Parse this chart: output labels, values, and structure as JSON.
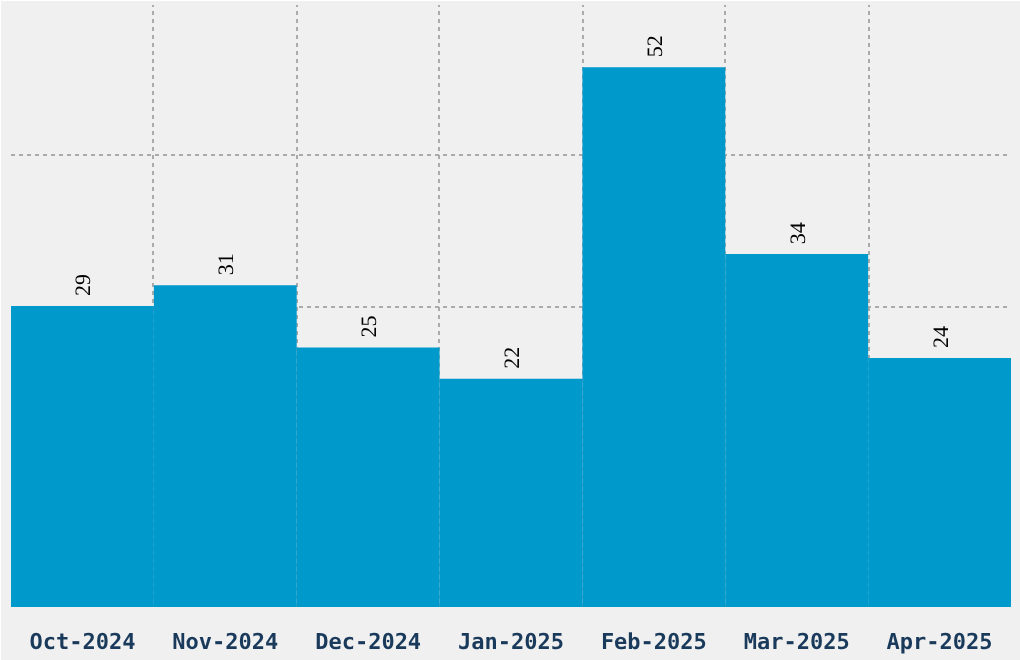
{
  "chart_data": {
    "type": "bar",
    "categories": [
      "Oct-2024",
      "Nov-2024",
      "Dec-2024",
      "Jan-2025",
      "Feb-2025",
      "Mar-2025",
      "Apr-2025"
    ],
    "values": [
      29,
      31,
      25,
      22,
      52,
      34,
      24
    ],
    "color": "#0099cc",
    "ylim": [
      0,
      58
    ],
    "yticks": [
      {
        "value": 29,
        "label": null
      },
      {
        "value": 43.5,
        "label": null
      }
    ],
    "tick_labels": "x",
    "grid": true,
    "data_labels": true
  }
}
